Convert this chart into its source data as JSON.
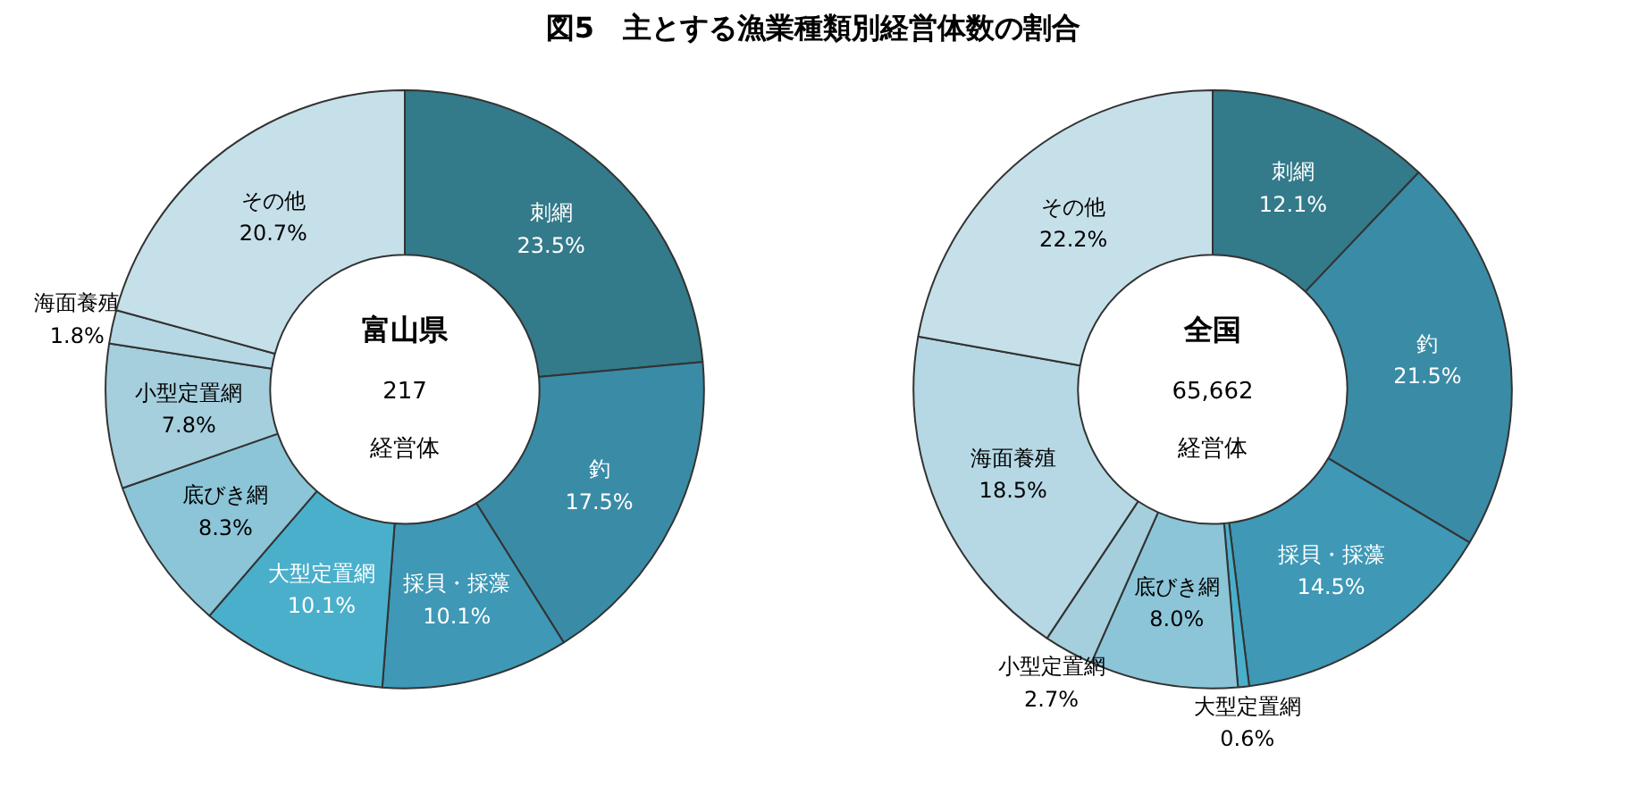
{
  "chart_data": [
    {
      "type": "donut",
      "title": "図5　主とする漁業種類別経営体数の割合",
      "categories": [
        "刺網",
        "釣",
        "採貝・採藻",
        "大型定置網",
        "底びき網",
        "小型定置網",
        "海面養殖",
        "その他"
      ],
      "values": [
        23.5,
        17.5,
        10.1,
        10.1,
        8.3,
        7.8,
        1.8,
        20.7
      ],
      "colors": [
        "#337a8a",
        "#3a8ba6",
        "#3e98b6",
        "#4aafcb",
        "#8cc5d7",
        "#a5cfdd",
        "#b5d8e4",
        "#c6e0e9"
      ],
      "value_labels": [
        "23.5%",
        "17.5%",
        "10.1%",
        "10.1%",
        "8.3%",
        "7.8%",
        "1.8%",
        "20.7%"
      ],
      "annotations": [
        "富山県",
        "217",
        "経営体"
      ]
    },
    {
      "type": "donut",
      "categories": [
        "刺網",
        "釣",
        "採貝・採藻",
        "大型定置網",
        "底びき網",
        "小型定置網",
        "海面養殖",
        "その他"
      ],
      "values": [
        12.1,
        21.5,
        14.5,
        0.6,
        8.0,
        2.7,
        18.5,
        22.2
      ],
      "colors": [
        "#337a8a",
        "#3a8ba6",
        "#3e98b6",
        "#4aafcb",
        "#8cc5d7",
        "#a5cfdd",
        "#b5d8e4",
        "#c6e0e9"
      ],
      "value_labels": [
        "12.1%",
        "21.5%",
        "14.5%",
        "0.6%",
        "8.0%",
        "2.7%",
        "18.5%",
        "22.2%"
      ],
      "annotations": [
        "全国",
        "65,662",
        "経営体"
      ]
    }
  ]
}
